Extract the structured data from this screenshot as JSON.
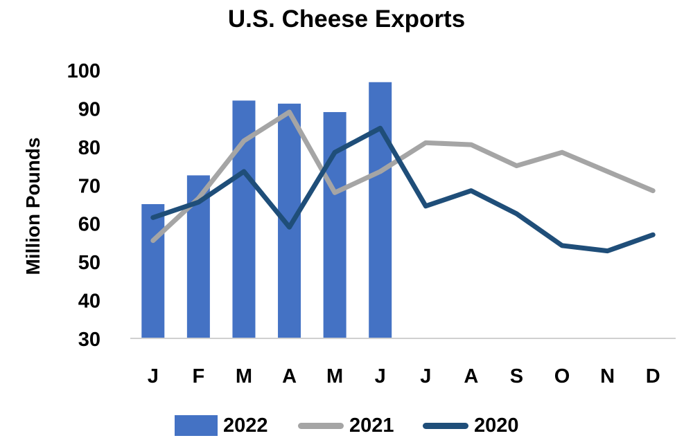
{
  "chart_data": {
    "type": "bar+line",
    "title": "U.S. Cheese Exports",
    "ylabel": "Million Pounds",
    "xlabel": "",
    "categories": [
      "J",
      "F",
      "M",
      "A",
      "M",
      "J",
      "J",
      "A",
      "S",
      "O",
      "N",
      "D"
    ],
    "ylim": [
      30,
      100
    ],
    "yticks": [
      30,
      40,
      50,
      60,
      70,
      80,
      90,
      100
    ],
    "grid": false,
    "legend_position": "bottom",
    "series": [
      {
        "name": "2022",
        "type": "bar",
        "color": "#4472C4",
        "values": [
          65,
          72.5,
          92,
          91.2,
          89,
          96.8,
          null,
          null,
          null,
          null,
          null,
          null
        ]
      },
      {
        "name": "2021",
        "type": "line",
        "color": "#A5A5A5",
        "values": [
          55.5,
          66.5,
          81.5,
          89,
          68,
          73.5,
          81,
          80.5,
          75,
          78.5,
          73.5,
          68.5
        ]
      },
      {
        "name": "2020",
        "type": "line",
        "color": "#1F4E79",
        "values": [
          61.5,
          65.5,
          73.5,
          59,
          78.5,
          84.8,
          64.5,
          68.5,
          62.5,
          54.2,
          52.8,
          57
        ]
      }
    ]
  }
}
